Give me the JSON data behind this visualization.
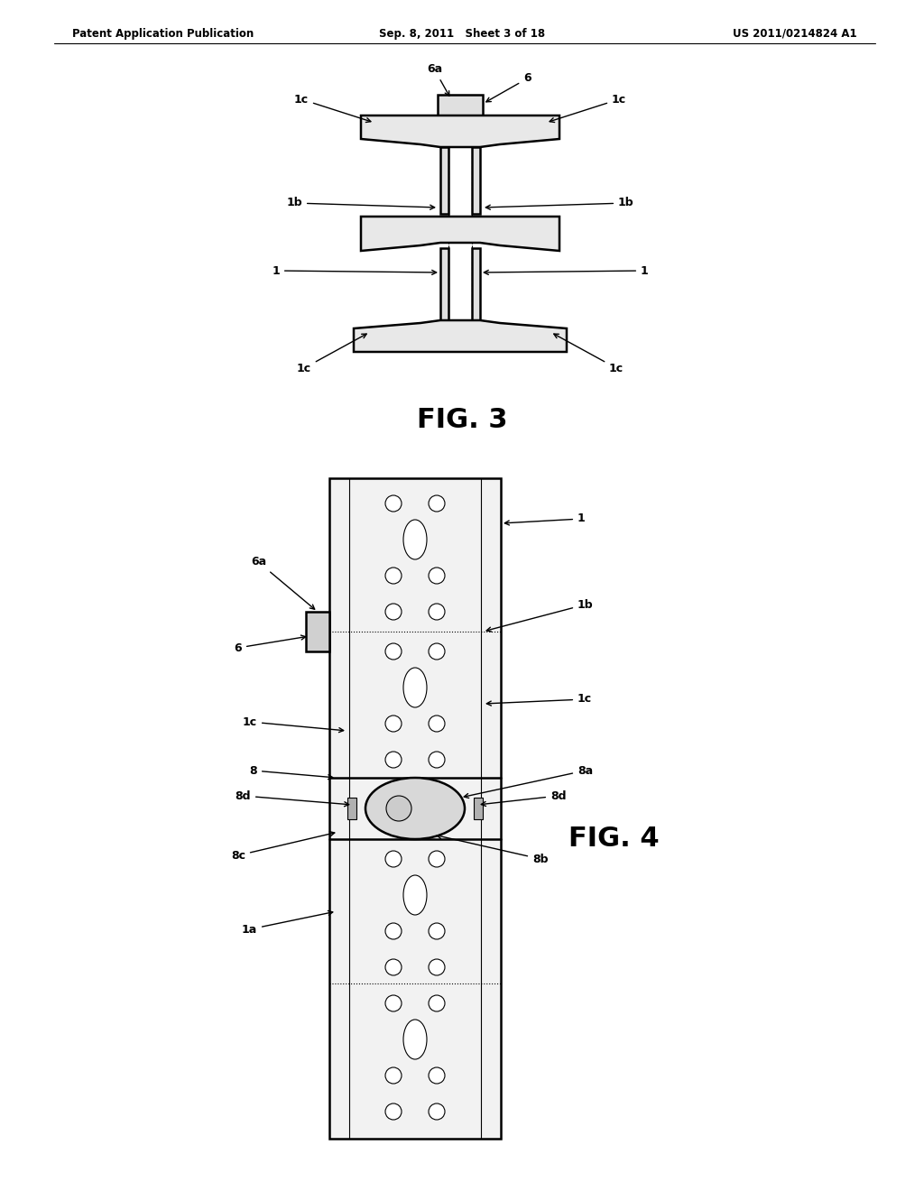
{
  "bg_color": "#ffffff",
  "line_color": "#000000",
  "header_left": "Patent Application Publication",
  "header_mid": "Sep. 8, 2011   Sheet 3 of 18",
  "header_right": "US 2011/0214824 A1",
  "fig3_title": "FIG. 3",
  "fig4_title": "FIG. 4"
}
